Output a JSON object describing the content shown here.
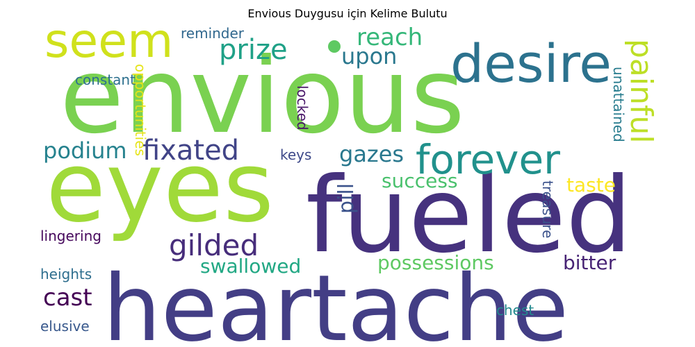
{
  "title": "Envious Duygusu için Kelime Bulutu",
  "words": [
    {
      "text": "envious",
      "color": "#7ad151"
    },
    {
      "text": "eyes",
      "color": "#a0da39"
    },
    {
      "text": "fueled",
      "color": "#46327e"
    },
    {
      "text": "heartache",
      "color": "#433e85"
    },
    {
      "text": "desire",
      "color": "#2c728e"
    },
    {
      "text": "seem",
      "color": "#d0e11c"
    },
    {
      "text": "forever",
      "color": "#21918c"
    },
    {
      "text": "fixated",
      "color": "#414487"
    },
    {
      "text": "painful",
      "color": "#bddf26"
    },
    {
      "text": "prize",
      "color": "#1fa187"
    },
    {
      "text": "reach",
      "color": "#35b779"
    },
    {
      "text": "upon",
      "color": "#2a788e"
    },
    {
      "text": "gilded",
      "color": "#472d7b"
    },
    {
      "text": "podium",
      "color": "#26828e"
    },
    {
      "text": "gazes",
      "color": "#2a788e"
    },
    {
      "text": "success",
      "color": "#4ac16d"
    },
    {
      "text": "taste",
      "color": "#fde725"
    },
    {
      "text": "swallowed",
      "color": "#22a884"
    },
    {
      "text": "possessions",
      "color": "#5ec962"
    },
    {
      "text": "bitter",
      "color": "#482475"
    },
    {
      "text": "cast",
      "color": "#440154"
    },
    {
      "text": "pill",
      "color": "#3b528b"
    },
    {
      "text": "reminder",
      "color": "#31688e"
    },
    {
      "text": "constant",
      "color": "#2d708e"
    },
    {
      "text": "opportunities",
      "color": "#e5e419"
    },
    {
      "text": "locked",
      "color": "#481668"
    },
    {
      "text": "keys",
      "color": "#3e4989"
    },
    {
      "text": "unattained",
      "color": "#287c8e"
    },
    {
      "text": "treasure",
      "color": "#3b528b"
    },
    {
      "text": "lingering",
      "color": "#46085c"
    },
    {
      "text": "heights",
      "color": "#2e6e8e"
    },
    {
      "text": "elusive",
      "color": "#38588c"
    },
    {
      "text": "chest",
      "color": "#23898e"
    }
  ]
}
